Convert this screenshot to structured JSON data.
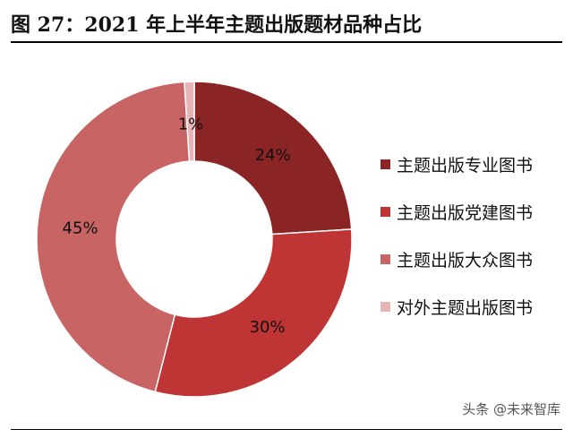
{
  "title": "图 27：2021 年上半年主题出版题材品种占比",
  "watermark": "头条 @未来智库",
  "chart_data": {
    "type": "pie",
    "variant": "donut",
    "title": "图 27：2021 年上半年主题出版题材品种占比",
    "legend_position": "right",
    "slices": [
      {
        "name": "主题出版专业图书",
        "value": 24,
        "label": "24%",
        "color": "#8b2424"
      },
      {
        "name": "主题出版党建图书",
        "value": 30,
        "label": "30%",
        "color": "#bf3535"
      },
      {
        "name": "主题出版大众图书",
        "value": 45,
        "label": "45%",
        "color": "#c86464"
      },
      {
        "name": "对外主题出版图书",
        "value": 1,
        "label": "1%",
        "color": "#e6b4b4"
      }
    ]
  }
}
